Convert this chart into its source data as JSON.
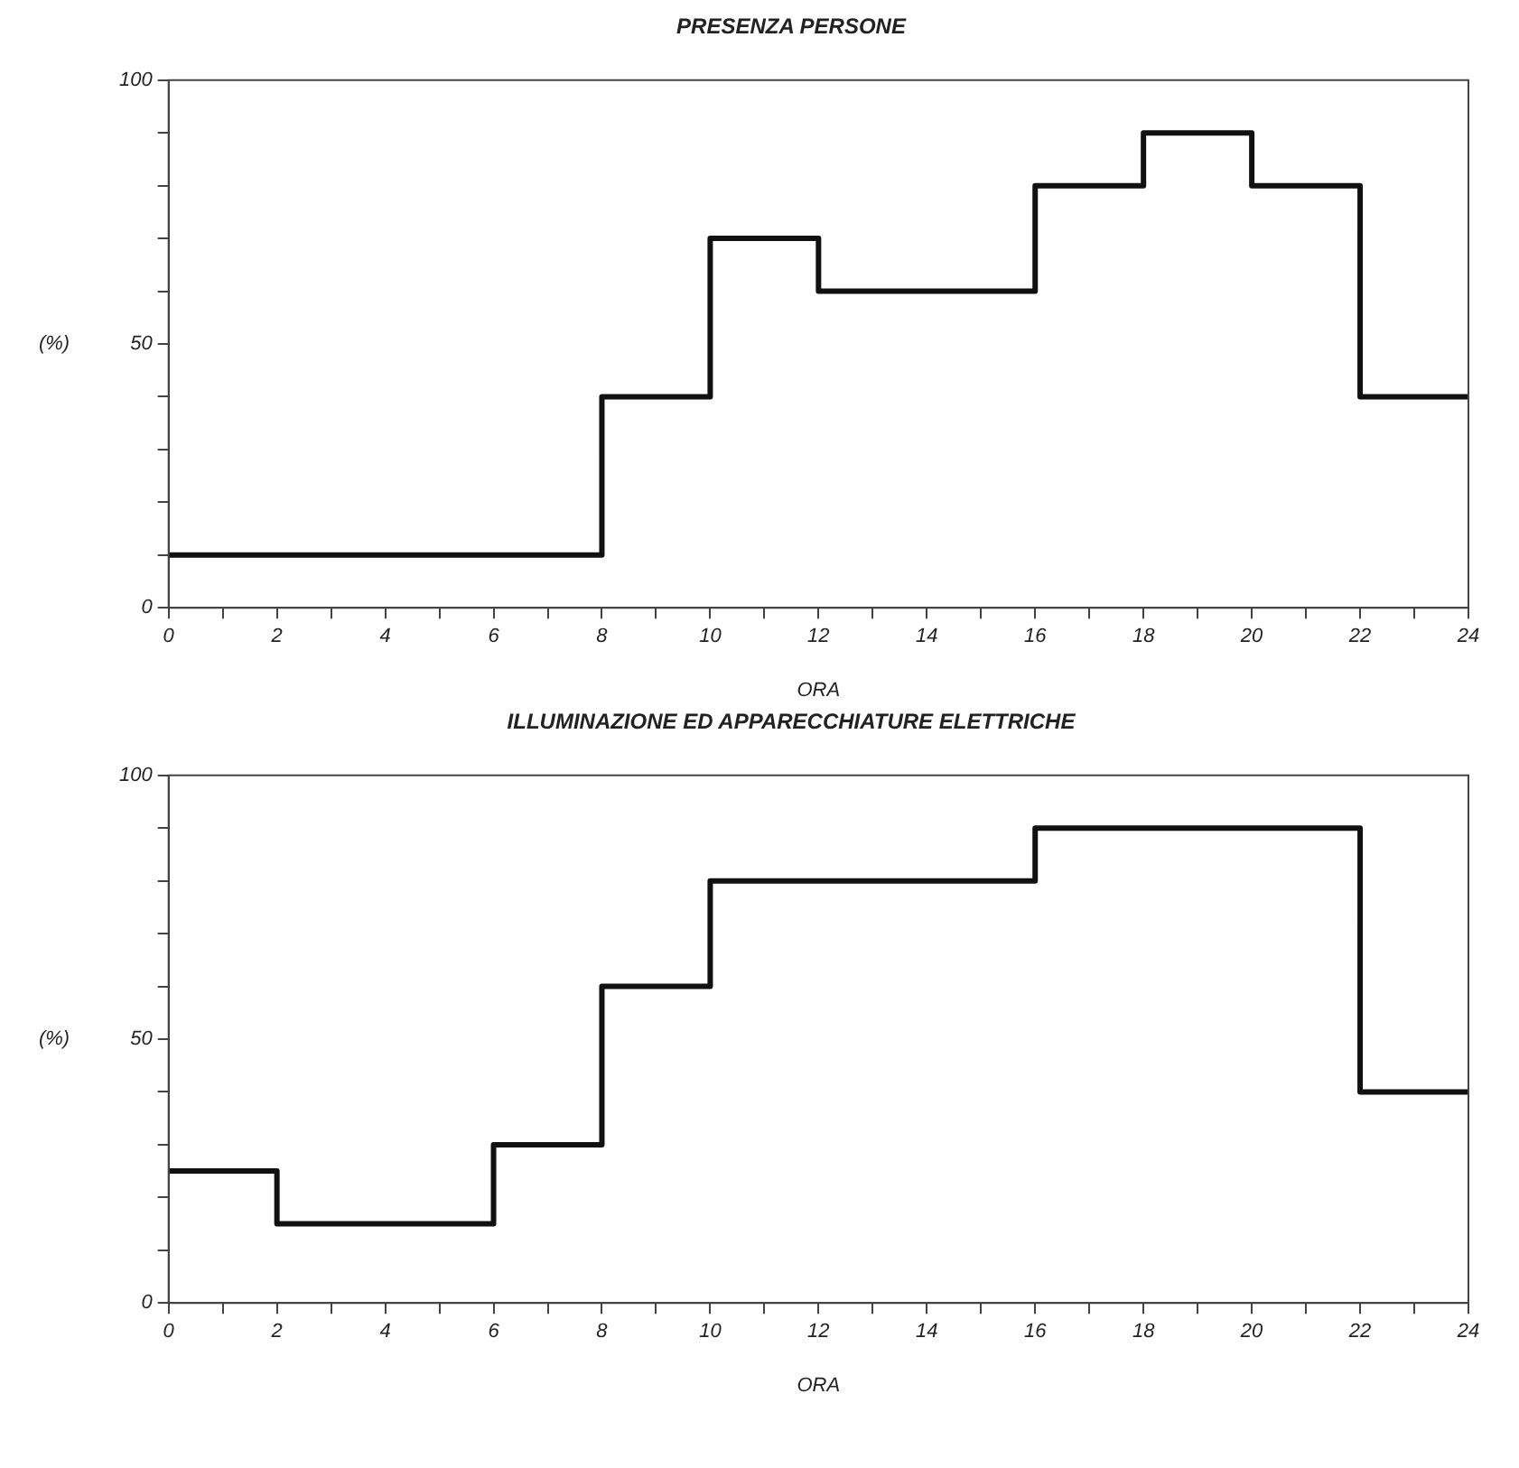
{
  "chart_data": [
    {
      "type": "step",
      "title": "PRESENZA PERSONE",
      "xlabel": "ORA",
      "ylabel": "(%)",
      "x": [
        0,
        8,
        10,
        12,
        16,
        18,
        20,
        22,
        24
      ],
      "series": [
        {
          "color": "#111111",
          "values": [
            10,
            40,
            70,
            60,
            80,
            90,
            80,
            40,
            40
          ]
        }
      ],
      "xlim": [
        0,
        24
      ],
      "xticks": [
        0,
        {
          "value": 1,
          "label": null
        },
        2,
        {
          "value": 3,
          "label": null
        },
        4,
        {
          "value": 5,
          "label": null
        },
        6,
        {
          "value": 7,
          "label": null
        },
        8,
        {
          "value": 9,
          "label": null
        },
        10,
        {
          "value": 11,
          "label": null
        },
        12,
        {
          "value": 13,
          "label": null
        },
        14,
        {
          "value": 15,
          "label": null
        },
        16,
        {
          "value": 17,
          "label": null
        },
        18,
        {
          "value": 19,
          "label": null
        },
        20,
        {
          "value": 21,
          "label": null
        },
        22,
        {
          "value": 23,
          "label": null
        },
        24
      ],
      "ylim": [
        0,
        100
      ],
      "yticks": [
        0,
        {
          "value": 10,
          "label": null
        },
        {
          "value": 20,
          "label": null
        },
        {
          "value": 30,
          "label": null
        },
        {
          "value": 40,
          "label": null
        },
        50,
        {
          "value": 60,
          "label": null
        },
        {
          "value": 70,
          "label": null
        },
        {
          "value": 80,
          "label": null
        },
        {
          "value": 90,
          "label": null
        },
        100
      ],
      "grid": false,
      "legend": false
    },
    {
      "type": "step",
      "title": "ILLUMINAZIONE ED APPARECCHIATURE ELETTRICHE",
      "xlabel": "ORA",
      "ylabel": "(%)",
      "x": [
        0,
        2,
        6,
        8,
        10,
        16,
        22,
        24
      ],
      "series": [
        {
          "color": "#111111",
          "values": [
            25,
            15,
            30,
            60,
            80,
            90,
            40,
            40
          ]
        }
      ],
      "xlim": [
        0,
        24
      ],
      "xticks": [
        0,
        {
          "value": 1,
          "label": null
        },
        2,
        {
          "value": 3,
          "label": null
        },
        4,
        {
          "value": 5,
          "label": null
        },
        6,
        {
          "value": 7,
          "label": null
        },
        8,
        {
          "value": 9,
          "label": null
        },
        10,
        {
          "value": 11,
          "label": null
        },
        12,
        {
          "value": 13,
          "label": null
        },
        14,
        {
          "value": 15,
          "label": null
        },
        16,
        {
          "value": 17,
          "label": null
        },
        18,
        {
          "value": 19,
          "label": null
        },
        20,
        {
          "value": 21,
          "label": null
        },
        22,
        {
          "value": 23,
          "label": null
        },
        24
      ],
      "ylim": [
        0,
        100
      ],
      "yticks": [
        0,
        {
          "value": 10,
          "label": null
        },
        {
          "value": 20,
          "label": null
        },
        {
          "value": 30,
          "label": null
        },
        {
          "value": 40,
          "label": null
        },
        50,
        {
          "value": 60,
          "label": null
        },
        {
          "value": 70,
          "label": null
        },
        {
          "value": 80,
          "label": null
        },
        {
          "value": 90,
          "label": null
        },
        100
      ],
      "grid": false,
      "legend": false
    }
  ]
}
